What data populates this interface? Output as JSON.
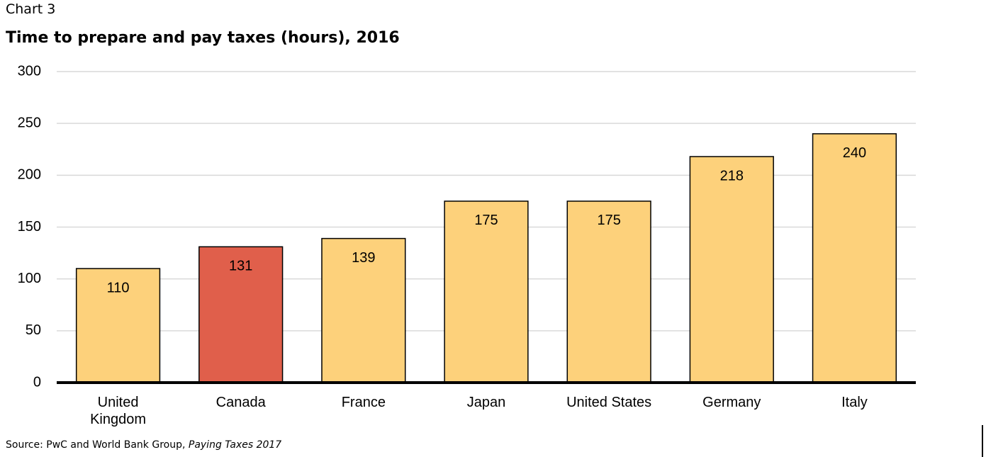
{
  "chart_data": {
    "type": "bar",
    "label": "Chart 3",
    "title": "Time to prepare and pay taxes (hours), 2016",
    "categories": [
      "United\nKingdom",
      "Canada",
      "France",
      "Japan",
      "United States",
      "Germany",
      "Italy"
    ],
    "values": [
      110,
      131,
      139,
      175,
      175,
      218,
      240
    ],
    "colors": [
      "#fdd17b",
      "#e05f4b",
      "#fdd17b",
      "#fdd17b",
      "#fdd17b",
      "#fdd17b",
      "#fdd17b"
    ],
    "ylim": [
      0,
      300
    ],
    "yticks": [
      0,
      50,
      100,
      150,
      200,
      250,
      300
    ],
    "grid": true,
    "source": "Source: PwC and World Bank Group,",
    "source_title": "Paying Taxes 2017"
  }
}
